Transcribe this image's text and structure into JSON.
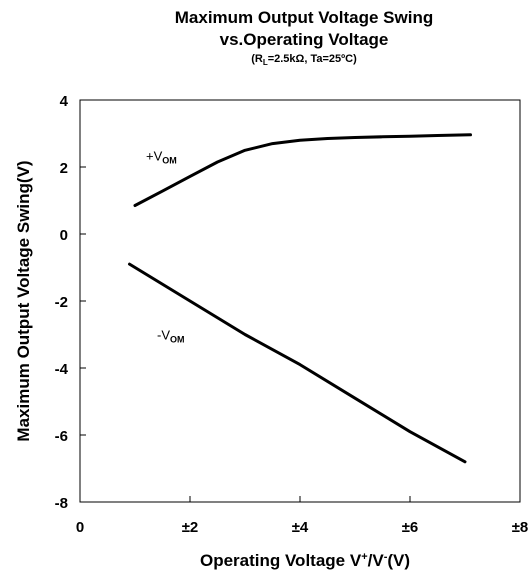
{
  "chart_data": {
    "type": "line",
    "title_line1": "Maximum Output Voltage Swing",
    "title_line2": "vs.Operating Voltage",
    "subtitle": {
      "r_prefix": "(R",
      "r_subscript": "L",
      "rest": "=2.5kΩ, Ta=25ºC)"
    },
    "xlabel": {
      "main": "Operating Voltage V",
      "sup1": "+",
      "mid": "/V",
      "sup2": "-",
      "end": "(V)"
    },
    "ylabel": "Maximum Output Voltage Swing(V)",
    "xlim": [
      0,
      8
    ],
    "ylim": [
      -8,
      4
    ],
    "x_ticks": [
      0,
      2,
      4,
      6,
      8
    ],
    "x_tick_labels": [
      "0",
      "±2",
      "±4",
      "±6",
      "±8"
    ],
    "y_ticks": [
      4,
      2,
      0,
      -2,
      -4,
      -6,
      -8
    ],
    "y_tick_labels": [
      "4",
      "2",
      "0",
      "-2",
      "-4",
      "-6",
      "-8"
    ],
    "grid": false,
    "series": [
      {
        "name_main": "+V",
        "name_sub": "OM",
        "x": [
          1.0,
          1.5,
          2.0,
          2.5,
          3.0,
          3.5,
          4.0,
          4.5,
          5.0,
          5.5,
          6.0,
          6.5,
          7.1
        ],
        "y": [
          0.85,
          1.28,
          1.72,
          2.15,
          2.5,
          2.7,
          2.8,
          2.85,
          2.88,
          2.9,
          2.92,
          2.94,
          2.96
        ]
      },
      {
        "name_main": "-V",
        "name_sub": "OM",
        "x": [
          0.9,
          2.0,
          3.0,
          4.0,
          5.0,
          6.0,
          7.0
        ],
        "y": [
          -0.9,
          -2.0,
          -3.0,
          -3.9,
          -4.9,
          -5.9,
          -6.8
        ]
      }
    ]
  }
}
